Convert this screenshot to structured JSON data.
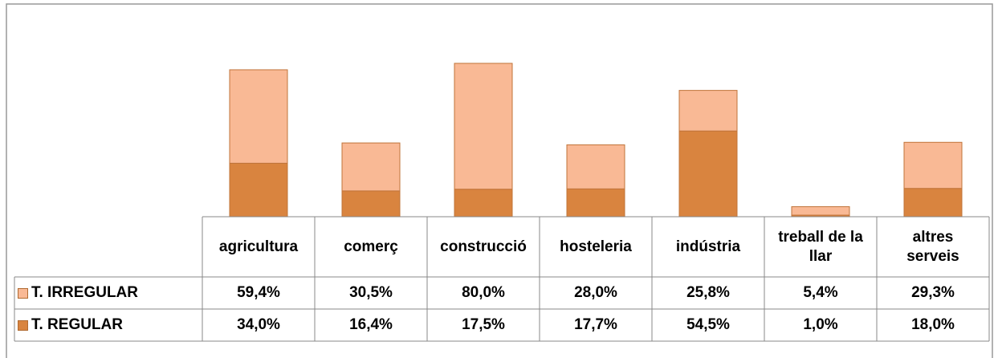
{
  "chart_data": {
    "type": "stacked_bar",
    "categories": [
      "agricultura",
      "comerç",
      "construcció",
      "hosteleria",
      "indústria",
      "treball de la llar",
      "altres serveis"
    ],
    "series": [
      {
        "name": "T. REGULAR",
        "color": "#d9843f",
        "values": [
          34.0,
          16.4,
          17.5,
          17.7,
          54.5,
          1.0,
          18.0
        ],
        "value_labels": [
          "34,0%",
          "16,4%",
          "17,5%",
          "17,7%",
          "54,5%",
          "1,0%",
          "18,0%"
        ]
      },
      {
        "name": "T. IRREGULAR",
        "color": "#f9b995",
        "values": [
          59.4,
          30.5,
          80.0,
          28.0,
          25.8,
          5.4,
          29.3
        ],
        "value_labels": [
          "59,4%",
          "30,5%",
          "80,0%",
          "28,0%",
          "25,8%",
          "5,4%",
          "29,3%"
        ]
      }
    ],
    "ylim": [
      0,
      100
    ]
  }
}
